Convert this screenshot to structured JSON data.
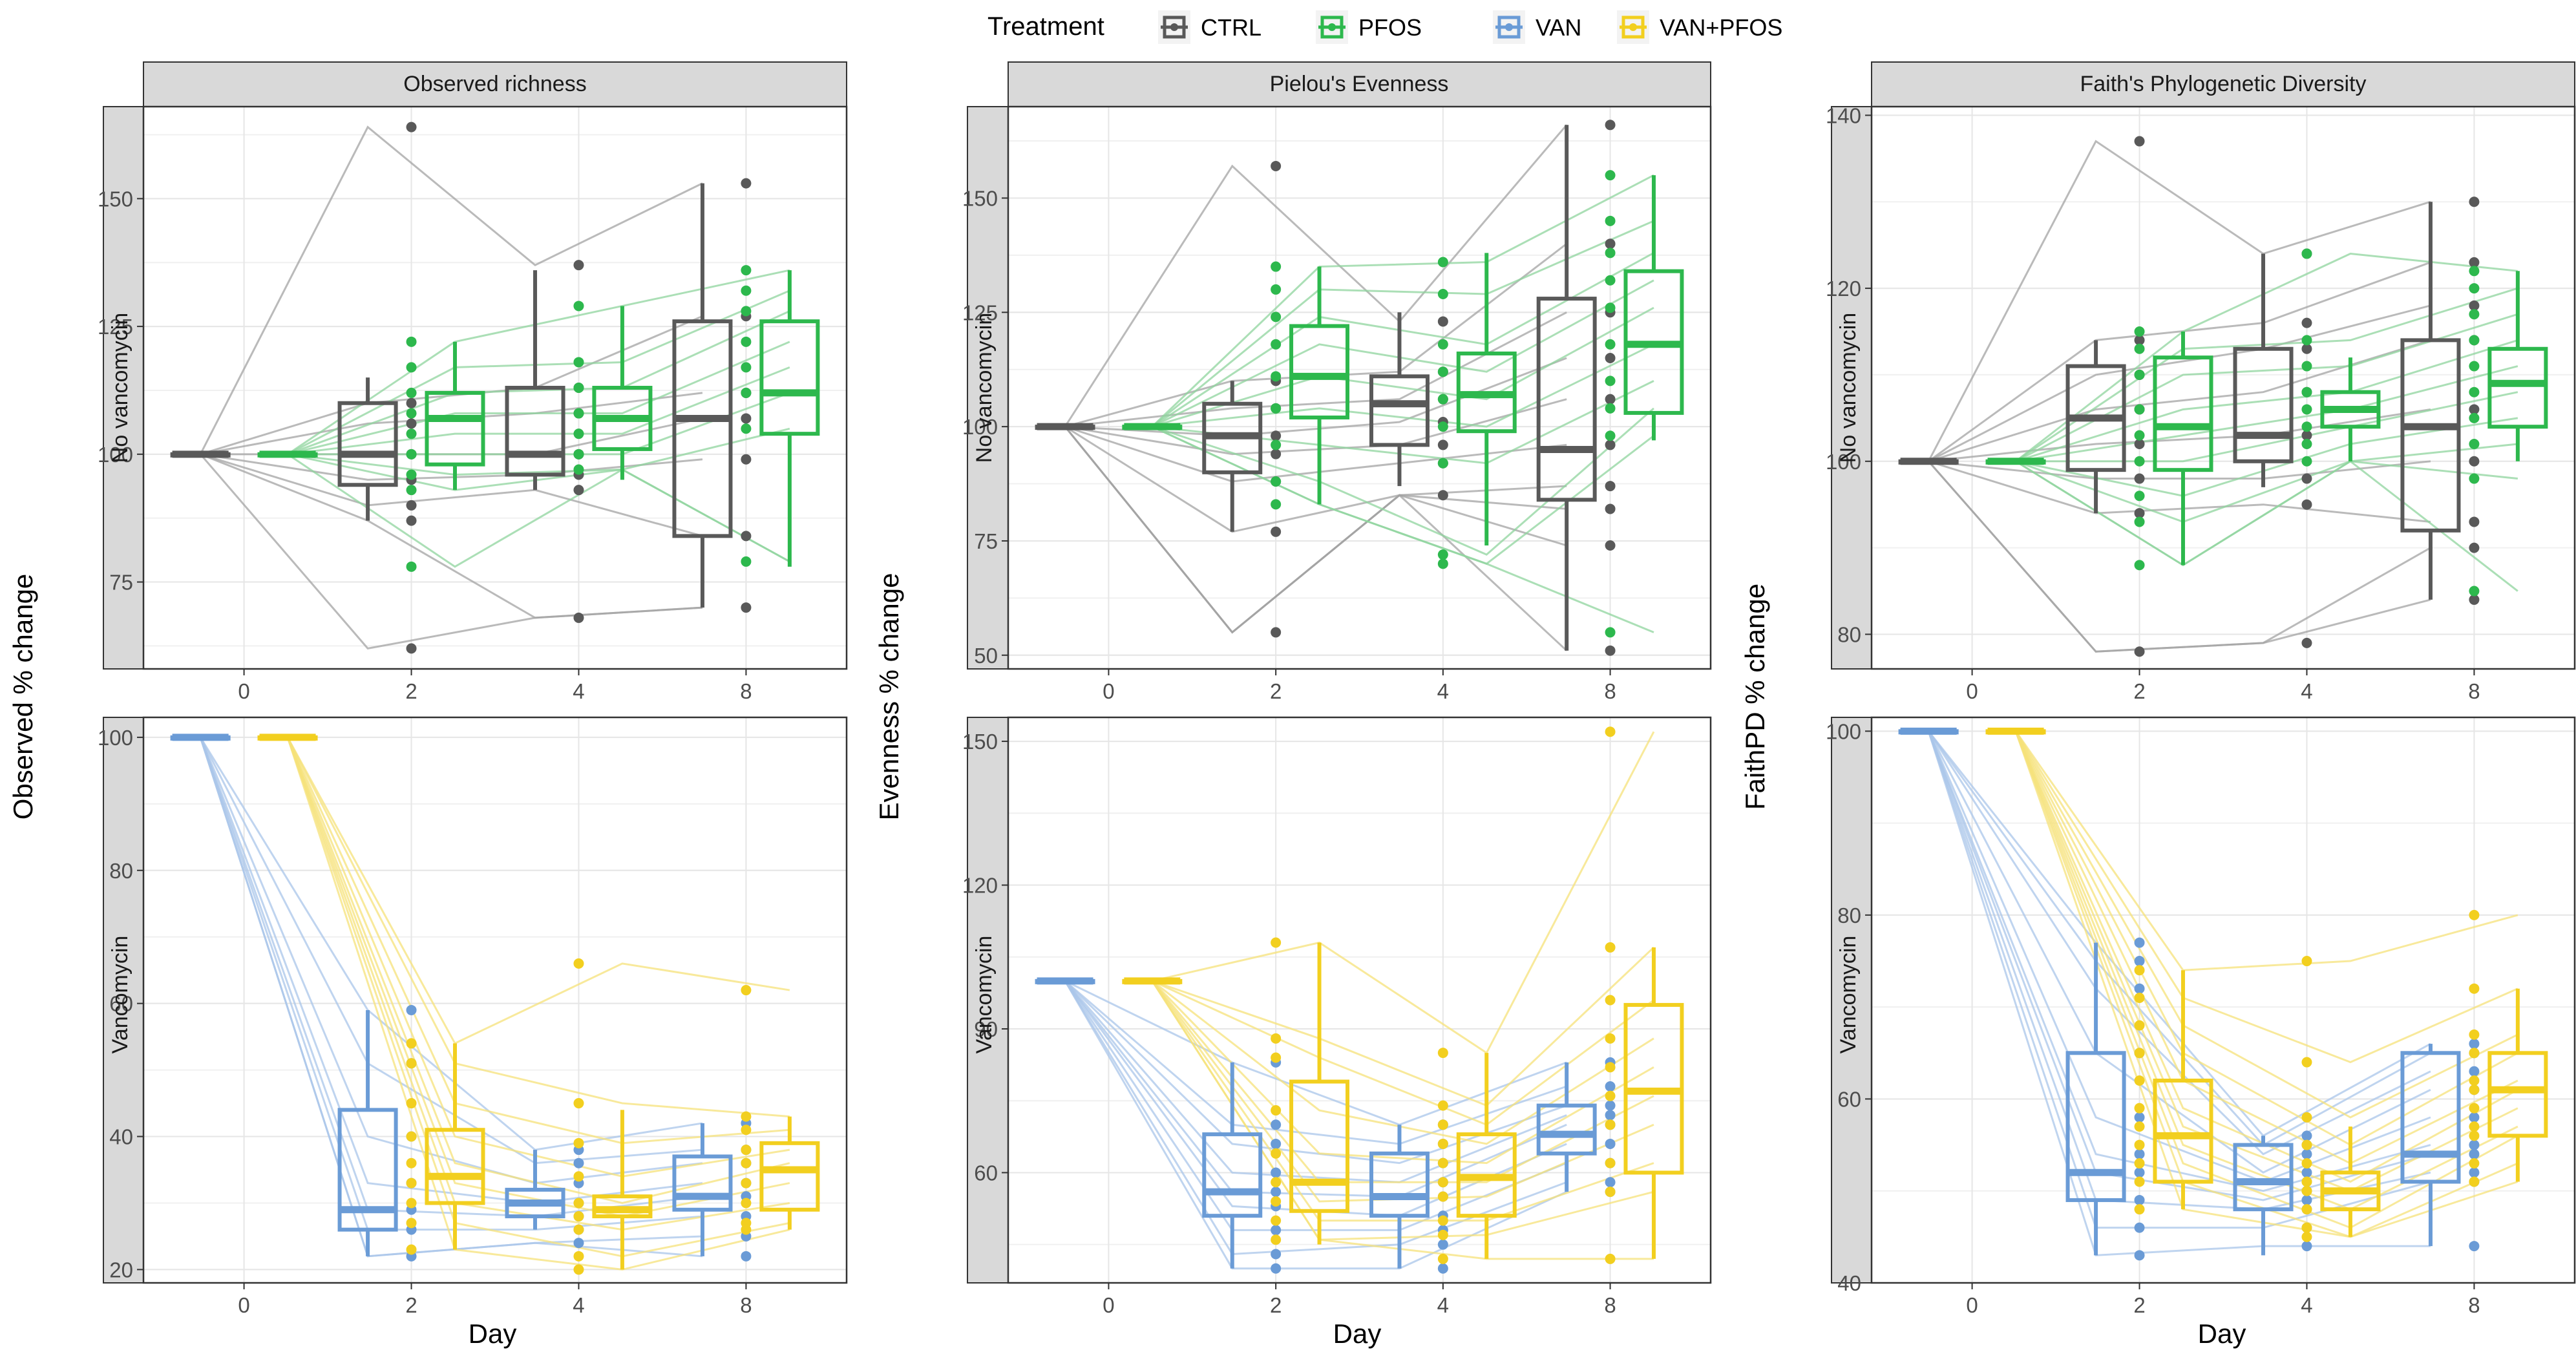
{
  "legend": {
    "title": "Treatment",
    "items": [
      {
        "label": "CTRL",
        "color": "#595959"
      },
      {
        "label": "PFOS",
        "color": "#2db84d"
      },
      {
        "label": "VAN",
        "color": "#6a9bd6"
      },
      {
        "label": "VAN+PFOS",
        "color": "#f2cf1f"
      }
    ]
  },
  "column_strips": [
    "Observed richness",
    "Pielou's Evenness",
    "Faith's Phylogenetic Diversity"
  ],
  "row_strips": [
    "No vancomycin",
    "Vancomycin"
  ],
  "y_labels": [
    "Observed % change",
    "Evenness % change",
    "FaithPD % change"
  ],
  "x_label": "Day",
  "chart_data": [
    {
      "type": "box",
      "facet": "Observed richness / No vancomycin",
      "categories": [
        "0",
        "2",
        "4",
        "8"
      ],
      "ylim": [
        58,
        168
      ],
      "yticks": [
        75,
        100,
        125,
        150
      ],
      "series": [
        {
          "name": "CTRL",
          "boxes": [
            [
              100,
              100,
              100,
              100,
              100
            ],
            [
              87,
              94,
              100,
              110,
              115
            ],
            [
              93,
              96,
              100,
              113,
              136
            ],
            [
              70,
              84,
              107,
              126,
              153
            ]
          ],
          "points": [
            [],
            [
              164,
              110,
              106,
              100,
              95,
              90,
              87,
              62
            ],
            [
              137,
              113,
              108,
              100,
              96,
              93,
              68
            ],
            [
              153,
              127,
              112,
              107,
              99,
              84,
              70
            ]
          ]
        },
        {
          "name": "PFOS",
          "boxes": [
            [
              100,
              100,
              100,
              100,
              100
            ],
            [
              93,
              98,
              107,
              112,
              122
            ],
            [
              95,
              101,
              107,
              113,
              129
            ],
            [
              78,
              104,
              112,
              126,
              136
            ]
          ],
          "points": [
            [],
            [
              122,
              117,
              112,
              108,
              104,
              100,
              96,
              93,
              78
            ],
            [
              129,
              118,
              113,
              108,
              104,
              100,
              97
            ],
            [
              136,
              132,
              128,
              122,
              117,
              112,
              105,
              79
            ]
          ]
        }
      ]
    },
    {
      "type": "box",
      "facet": "Pielou's Evenness / No vancomycin",
      "categories": [
        "0",
        "2",
        "4",
        "8"
      ],
      "ylim": [
        47,
        170
      ],
      "yticks": [
        50,
        75,
        100,
        125,
        150
      ],
      "series": [
        {
          "name": "CTRL",
          "boxes": [
            [
              100,
              100,
              100,
              100,
              100
            ],
            [
              77,
              90,
              98,
              105,
              110
            ],
            [
              87,
              96,
              105,
              111,
              125
            ],
            [
              51,
              84,
              95,
              128,
              166
            ]
          ],
          "points": [
            [],
            [
              157,
              110,
              104,
              98,
              94,
              88,
              77,
              55
            ],
            [
              123,
              112,
              106,
              101,
              96,
              92,
              85
            ],
            [
              166,
              140,
              125,
              115,
              106,
              96,
              87,
              82,
              74,
              51
            ]
          ]
        },
        {
          "name": "PFOS",
          "boxes": [
            [
              100,
              100,
              100,
              100,
              100
            ],
            [
              83,
              102,
              111,
              122,
              135
            ],
            [
              74,
              99,
              107,
              116,
              138
            ],
            [
              97,
              103,
              118,
              134,
              155
            ]
          ],
          "points": [
            [],
            [
              135,
              130,
              124,
              118,
              111,
              104,
              96,
              88,
              83
            ],
            [
              136,
              129,
              118,
              112,
              106,
              100,
              92,
              72,
              70
            ],
            [
              155,
              145,
              138,
              132,
              126,
              118,
              110,
              104,
              98,
              55
            ]
          ]
        }
      ]
    },
    {
      "type": "box",
      "facet": "Faith's Phylogenetic Diversity / No vancomycin",
      "categories": [
        "0",
        "2",
        "4",
        "8"
      ],
      "ylim": [
        76,
        141
      ],
      "yticks": [
        80,
        100,
        120,
        140
      ],
      "series": [
        {
          "name": "CTRL",
          "boxes": [
            [
              100,
              100,
              100,
              100,
              100
            ],
            [
              94,
              99,
              105,
              111,
              114
            ],
            [
              97,
              100,
              103,
              113,
              124
            ],
            [
              84,
              92,
              104,
              114,
              130
            ]
          ],
          "points": [
            [],
            [
              137,
              114,
              110,
              106,
              102,
              98,
              94,
              78
            ],
            [
              124,
              116,
              113,
              108,
              103,
              98,
              95,
              79
            ],
            [
              130,
              123,
              118,
              114,
              106,
              100,
              93,
              90,
              84
            ]
          ]
        },
        {
          "name": "PFOS",
          "boxes": [
            [
              100,
              100,
              100,
              100,
              100
            ],
            [
              88,
              99,
              104,
              112,
              115
            ],
            [
              100,
              104,
              106,
              108,
              112
            ],
            [
              100,
              104,
              109,
              113,
              122
            ]
          ],
          "points": [
            [],
            [
              115,
              113,
              110,
              106,
              103,
              100,
              96,
              93,
              88
            ],
            [
              124,
              114,
              111,
              108,
              106,
              104,
              102,
              100
            ],
            [
              122,
              120,
              117,
              114,
              111,
              108,
              105,
              102,
              98,
              85
            ]
          ]
        }
      ]
    },
    {
      "type": "box",
      "facet": "Observed richness / Vancomycin",
      "categories": [
        "0",
        "2",
        "4",
        "8"
      ],
      "ylim": [
        18,
        103
      ],
      "yticks": [
        20,
        40,
        60,
        80,
        100
      ],
      "series": [
        {
          "name": "VAN",
          "boxes": [
            [
              100,
              100,
              100,
              100,
              100
            ],
            [
              22,
              26,
              29,
              44,
              59
            ],
            [
              26,
              28,
              30,
              32,
              38
            ],
            [
              22,
              29,
              31,
              37,
              42
            ]
          ],
          "points": [
            [],
            [
              59,
              51,
              40,
              33,
              29,
              26,
              22
            ],
            [
              38,
              36,
              33,
              30,
              28,
              26,
              24
            ],
            [
              42,
              38,
              36,
              33,
              31,
              28,
              25,
              22
            ]
          ]
        },
        {
          "name": "VAN+PFOS",
          "boxes": [
            [
              100,
              100,
              100,
              100,
              100
            ],
            [
              23,
              30,
              34,
              41,
              54
            ],
            [
              20,
              28,
              29,
              31,
              44
            ],
            [
              26,
              29,
              35,
              39,
              43
            ]
          ],
          "points": [
            [],
            [
              54,
              51,
              45,
              40,
              36,
              33,
              30,
              27,
              23
            ],
            [
              66,
              45,
              39,
              34,
              30,
              28,
              26,
              22,
              20
            ],
            [
              62,
              43,
              41,
              38,
              36,
              33,
              30,
              27,
              26
            ]
          ]
        }
      ]
    },
    {
      "type": "box",
      "facet": "Pielou's Evenness / Vancomycin",
      "categories": [
        "0",
        "2",
        "4",
        "8"
      ],
      "ylim": [
        37,
        155
      ],
      "yticks": [
        60,
        90,
        120,
        150
      ],
      "series": [
        {
          "name": "VAN",
          "boxes": [
            [
              100,
              100,
              100,
              100,
              100
            ],
            [
              40,
              51,
              56,
              68,
              83
            ],
            [
              40,
              51,
              55,
              64,
              70
            ],
            [
              56,
              64,
              68,
              74,
              83
            ]
          ],
          "points": [
            [],
            [
              83,
              70,
              66,
              60,
              56,
              53,
              48,
              43,
              40
            ],
            [
              70,
              66,
              62,
              58,
              55,
              51,
              48,
              45,
              40
            ],
            [
              83,
              78,
              74,
              72,
              70,
              66,
              62,
              58,
              56
            ]
          ]
        },
        {
          "name": "VAN+PFOS",
          "boxes": [
            [
              100,
              100,
              100,
              100,
              100
            ],
            [
              45,
              52,
              58,
              79,
              108
            ],
            [
              42,
              51,
              59,
              68,
              85
            ],
            [
              42,
              60,
              77,
              95,
              107
            ]
          ],
          "points": [
            [],
            [
              108,
              88,
              84,
              73,
              64,
              58,
              54,
              50,
              46
            ],
            [
              85,
              74,
              70,
              66,
              62,
              58,
              55,
              50,
              47,
              42
            ],
            [
              152,
              107,
              96,
              88,
              82,
              76,
              70,
              62,
              56,
              42
            ]
          ]
        }
      ]
    },
    {
      "type": "box",
      "facet": "Faith's Phylogenetic Diversity / Vancomycin",
      "categories": [
        "0",
        "2",
        "4",
        "8"
      ],
      "ylim": [
        40,
        101.5
      ],
      "yticks": [
        40,
        60,
        80,
        100
      ],
      "series": [
        {
          "name": "VAN",
          "boxes": [
            [
              100,
              100,
              100,
              100,
              100
            ],
            [
              43,
              49,
              52,
              65,
              77
            ],
            [
              43,
              48,
              51,
              55,
              56
            ],
            [
              44,
              51,
              54,
              65,
              66
            ]
          ],
          "points": [
            [],
            [
              77,
              75,
              72,
              65,
              58,
              54,
              52,
              49,
              46,
              43
            ],
            [
              56,
              55,
              54,
              52,
              51,
              50,
              49,
              48,
              46,
              44
            ],
            [
              66,
              65,
              63,
              61,
              58,
              55,
              54,
              52,
              51,
              44
            ]
          ]
        },
        {
          "name": "VAN+PFOS",
          "boxes": [
            [
              100,
              100,
              100,
              100,
              100
            ],
            [
              48,
              51,
              56,
              62,
              74
            ],
            [
              45,
              48,
              50,
              52,
              57
            ],
            [
              51,
              56,
              61,
              65,
              72
            ]
          ],
          "points": [
            [],
            [
              74,
              71,
              68,
              65,
              62,
              59,
              57,
              55,
              53,
              51,
              48
            ],
            [
              75,
              64,
              58,
              55,
              53,
              51,
              50,
              48,
              46,
              45
            ],
            [
              80,
              72,
              67,
              65,
              62,
              61,
              59,
              57,
              56,
              53,
              51
            ]
          ]
        }
      ]
    }
  ]
}
